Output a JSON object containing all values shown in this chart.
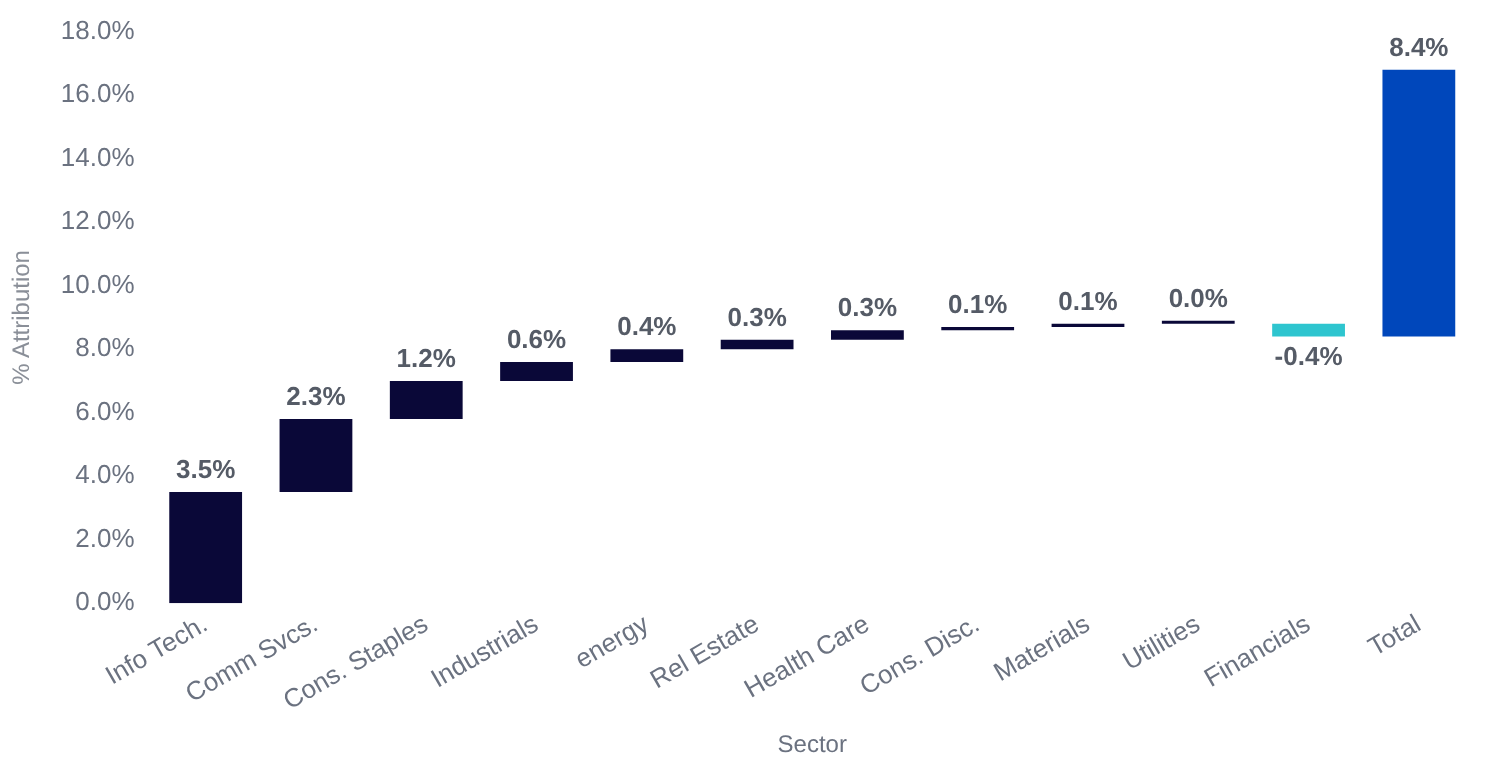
{
  "chart_data": {
    "type": "bar",
    "xlabel": "Sector",
    "ylabel": "% Attribution",
    "categories": [
      "Info Tech.",
      "Comm Svcs.",
      "Cons. Staples",
      "Industrials",
      "energy",
      "Rel Estate",
      "Health Care",
      "Cons. Disc.",
      "Materials",
      "Utilities",
      "Financials",
      "Total"
    ],
    "values": [
      3.5,
      2.3,
      1.2,
      0.6,
      0.4,
      0.3,
      0.3,
      0.1,
      0.1,
      0.0,
      -0.4,
      8.4
    ],
    "base": [
      0,
      3.5,
      5.8,
      7.0,
      7.6,
      8.0,
      8.3,
      8.6,
      8.7,
      8.8,
      8.8,
      8.4
    ],
    "colors": [
      "#0a0838",
      "#0a0838",
      "#0a0838",
      "#0a0838",
      "#0a0838",
      "#0a0838",
      "#0a0838",
      "#0a0838",
      "#0a0838",
      "#0a0838",
      "#2ec5cf",
      "#0047bb"
    ],
    "value_labels": [
      "3.5%",
      "2.3%",
      "1.2%",
      "0.6%",
      "0.4%",
      "0.3%",
      "0.3%",
      "0.1%",
      "0.1%",
      "0.0%",
      "-0.4%",
      "8.4%"
    ],
    "ylim": [
      0,
      18
    ],
    "yticks": [
      {
        "value": 0,
        "label": "0.0%"
      },
      {
        "value": 2,
        "label": "2.0%"
      },
      {
        "value": 4,
        "label": "4.0%"
      },
      {
        "value": 6,
        "label": "6.0%"
      },
      {
        "value": 8,
        "label": "8.0%"
      },
      {
        "value": 10,
        "label": "10.0%"
      },
      {
        "value": 12,
        "label": "12.0%"
      },
      {
        "value": 14,
        "label": "14.0%"
      },
      {
        "value": 16,
        "label": "16.0%"
      },
      {
        "value": 18,
        "label": "18.0%"
      }
    ],
    "grid": false,
    "legend": false
  }
}
